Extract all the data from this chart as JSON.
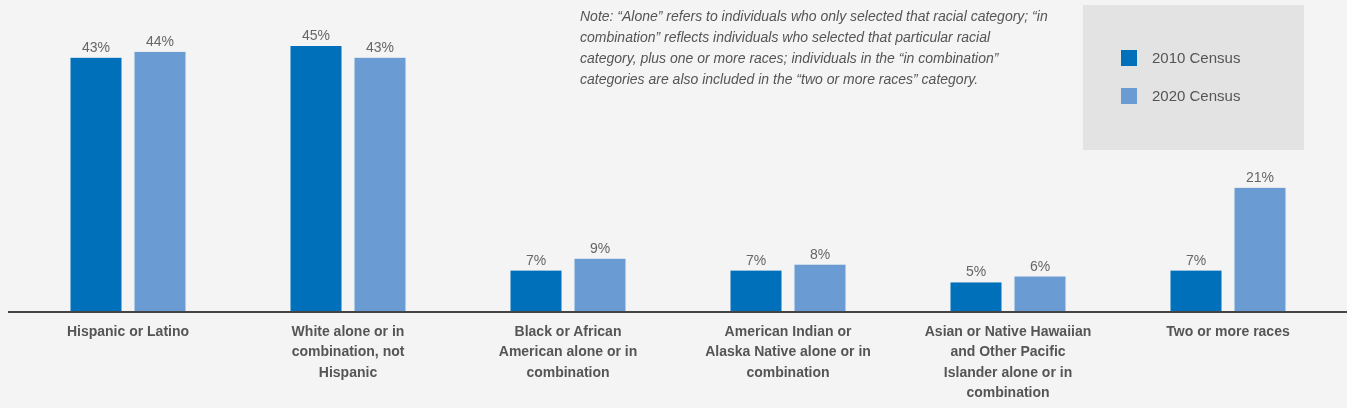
{
  "chart_data": {
    "type": "bar",
    "categories": [
      "Hispanic or Latino",
      "White alone or in combination, not Hispanic",
      "Black or African American alone or in combination",
      "American Indian or Alaska Native alone or in combination",
      "Asian or Native Hawaiian and Other Pacific Islander alone or in combination",
      "Two or more races"
    ],
    "series": [
      {
        "name": "2010 Census",
        "color": "#0070bb",
        "values": [
          43,
          45,
          7,
          7,
          5,
          7
        ],
        "value_labels": [
          "43%",
          "45%",
          "7%",
          "7%",
          "5%",
          "7%"
        ]
      },
      {
        "name": "2020 Census",
        "color": "#6a9bd3",
        "values": [
          44,
          43,
          9,
          8,
          6,
          21
        ],
        "value_labels": [
          "44%",
          "43%",
          "9%",
          "8%",
          "6%",
          "21%"
        ]
      }
    ],
    "legend": "top right",
    "annotations": [
      "Note: “Alone” refers to individuals who only selected that racial category; “in combination” reflects individuals who selected that particular racial category, plus one or more races; individuals in the “in combination” categories are also included in the “two or more races” category."
    ]
  }
}
